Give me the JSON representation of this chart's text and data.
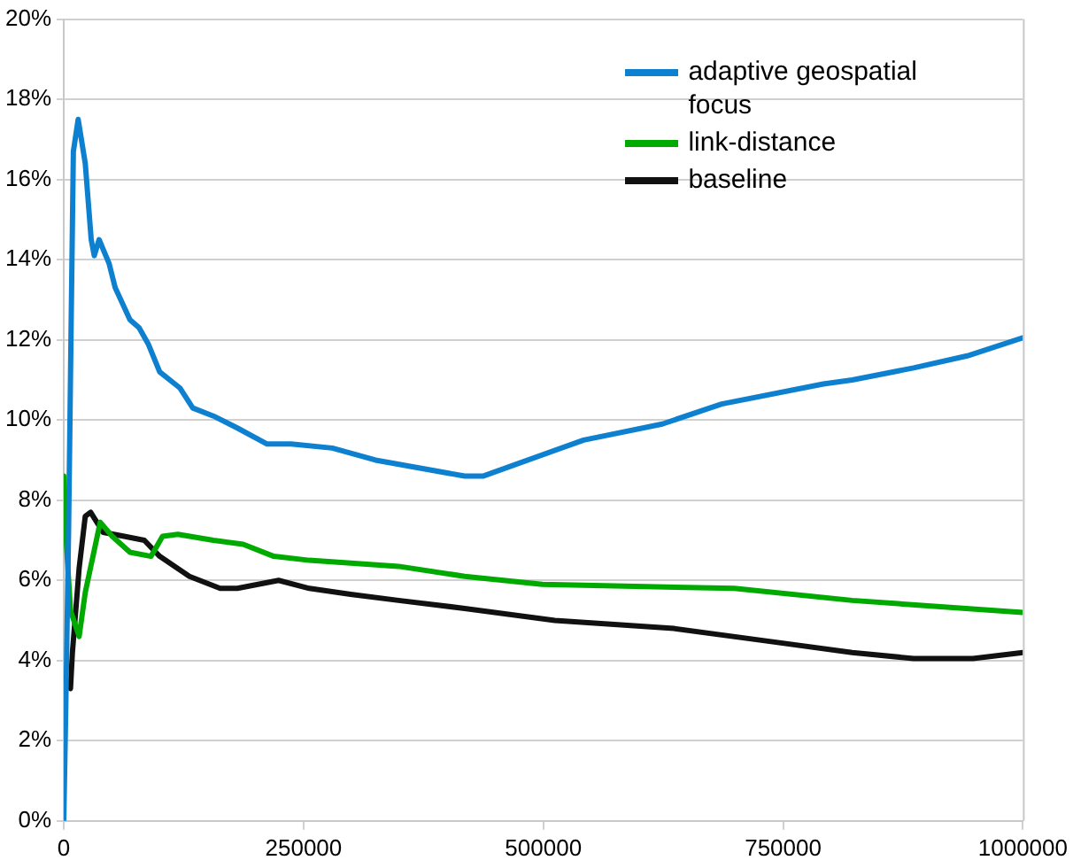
{
  "chart_data": {
    "type": "line",
    "xlim": [
      0,
      1000000
    ],
    "xticks": [
      0,
      250000,
      500000,
      750000,
      1000000
    ],
    "ylim": [
      0,
      20
    ],
    "yticks": [
      {
        "value": 0,
        "label": "0%"
      },
      {
        "value": 2,
        "label": "2%"
      },
      {
        "value": 4,
        "label": "4%"
      },
      {
        "value": 6,
        "label": "6%"
      },
      {
        "value": 8,
        "label": "8%"
      },
      {
        "value": 10,
        "label": "10%"
      },
      {
        "value": 12,
        "label": "12%"
      },
      {
        "value": 14,
        "label": "14%"
      },
      {
        "value": 16,
        "label": "16%"
      },
      {
        "value": 18,
        "label": "18%"
      },
      {
        "value": 20,
        "label": "20%"
      }
    ],
    "grid": "y",
    "legend": "top right",
    "marker": "none",
    "line_style": "solid",
    "series": [
      {
        "name": "adaptive geospatial focus",
        "color": "#0e80d0",
        "x": [
          0,
          2000,
          5000,
          8000,
          10000,
          15000,
          22400,
          28600,
          31800,
          36800,
          47300,
          53600,
          69000,
          78500,
          88000,
          100000,
          121000,
          134500,
          156000,
          181000,
          212000,
          237000,
          280000,
          325000,
          418000,
          437000,
          542000,
          624000,
          686000,
          792000,
          822000,
          886000,
          942000,
          1000000
        ],
        "values": [
          0,
          2.7,
          7.2,
          13,
          16.7,
          17.5,
          16.4,
          14.5,
          14.1,
          14.5,
          13.9,
          13.3,
          12.5,
          12.3,
          11.9,
          11.2,
          10.8,
          10.3,
          10.1,
          9.8,
          9.4,
          9.4,
          9.3,
          9.0,
          8.6,
          8.6,
          9.5,
          9.9,
          10.4,
          10.9,
          11.0,
          11.3,
          11.6,
          12.05
        ]
      },
      {
        "name": "link-distance",
        "color": "#00aa00",
        "x": [
          0,
          2000,
          7000,
          16000,
          22400,
          38000,
          50500,
          69000,
          91000,
          103000,
          119000,
          156000,
          187000,
          219000,
          256000,
          349000,
          418000,
          499000,
          699000,
          822000,
          1000000
        ],
        "values": [
          8.6,
          7.2,
          5.25,
          4.6,
          5.7,
          7.45,
          7.1,
          6.7,
          6.6,
          7.1,
          7.15,
          7.0,
          6.9,
          6.6,
          6.5,
          6.35,
          6.1,
          5.9,
          5.8,
          5.5,
          5.2
        ]
      },
      {
        "name": "baseline",
        "color": "#111111",
        "x": [
          1000,
          7000,
          9000,
          16000,
          22400,
          28000,
          41000,
          63000,
          84000,
          100000,
          131000,
          163000,
          181000,
          224000,
          256000,
          299000,
          349000,
          418000,
          512000,
          636000,
          729000,
          822000,
          886000,
          948000,
          1000000
        ],
        "values": [
          3.6,
          3.3,
          4.2,
          6.3,
          7.6,
          7.7,
          7.2,
          7.1,
          7.0,
          6.6,
          6.1,
          5.8,
          5.8,
          6.0,
          5.8,
          5.65,
          5.5,
          5.3,
          5.0,
          4.8,
          4.5,
          4.2,
          4.05,
          4.05,
          4.2
        ]
      }
    ]
  }
}
